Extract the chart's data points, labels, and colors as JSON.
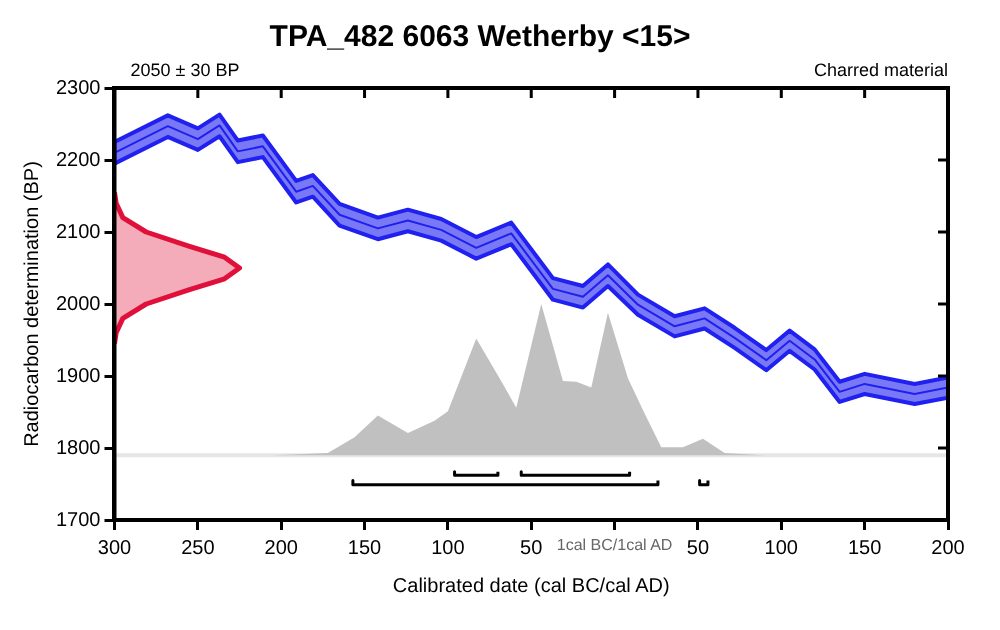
{
  "chart_data": {
    "type": "line",
    "title": "TPA_482 6063 Wetherby <15>",
    "xlabel": "Calibrated date (cal BC/cal AD)",
    "ylabel": "Radiocarbon determination (BP)",
    "annotations": [
      "2050 ± 30 BP",
      "Charred material"
    ],
    "xlim": [
      -300,
      200
    ],
    "xticks": [
      {
        "value": -300,
        "label": "300"
      },
      {
        "value": -250,
        "label": "250"
      },
      {
        "value": -200,
        "label": "200"
      },
      {
        "value": -150,
        "label": "150"
      },
      {
        "value": -100,
        "label": "100"
      },
      {
        "value": -50,
        "label": "50"
      },
      {
        "value": 0,
        "label": "1cal BC/1cal AD"
      },
      50,
      100,
      150,
      200
    ],
    "ylim": [
      1700,
      2300
    ],
    "yticks": [
      1700,
      1800,
      1900,
      2000,
      2100,
      2200,
      2300
    ],
    "grid": false,
    "legend": false,
    "marker": "none",
    "ref_lines": [
      {
        "axis": "y",
        "value": 1790,
        "color": "#e6e6e6"
      }
    ],
    "series": [
      {
        "type": "line",
        "color": "#2020f0",
        "x": [
          -300,
          -268,
          -250,
          -237,
          -226,
          -211,
          -191,
          -181,
          -165,
          -142,
          -124,
          -104,
          -83,
          -62,
          -37,
          -19,
          -4,
          14,
          36,
          54,
          72,
          91,
          105,
          120,
          135,
          150,
          180,
          200
        ],
        "values": [
          2210,
          2247,
          2229,
          2248,
          2212,
          2219,
          2156,
          2164,
          2124,
          2105,
          2116,
          2103,
          2078,
          2098,
          2021,
          2010,
          2040,
          1999,
          1969,
          1980,
          1953,
          1922,
          1949,
          1923,
          1878,
          1889,
          1875,
          1884
        ],
        "lower": [
          2195,
          2232,
          2214,
          2233,
          2197,
          2204,
          2141,
          2149,
          2109,
          2090,
          2101,
          2088,
          2063,
          2083,
          2006,
          1995,
          2025,
          1985,
          1955,
          1966,
          1939,
          1908,
          1935,
          1909,
          1864,
          1875,
          1861,
          1870
        ],
        "upper": [
          2225,
          2262,
          2244,
          2263,
          2227,
          2234,
          2171,
          2179,
          2139,
          2120,
          2131,
          2118,
          2093,
          2113,
          2036,
          2025,
          2055,
          2013,
          1983,
          1994,
          1967,
          1936,
          1963,
          1937,
          1892,
          1903,
          1889,
          1898
        ]
      },
      {
        "type": "area",
        "color": "#c0c0c0",
        "x": [
          -205,
          -172,
          -156,
          -142,
          -124,
          -108,
          -100,
          -83,
          -69,
          -59,
          -44,
          -31,
          -23,
          -14,
          -4,
          8,
          18,
          28,
          41,
          53,
          66,
          90
        ],
        "values": [
          1790,
          1793,
          1815,
          1845,
          1821,
          1838,
          1851,
          1952,
          1897,
          1856,
          2000,
          1893,
          1892,
          1884,
          1988,
          1897,
          1848,
          1801,
          1801,
          1813,
          1793,
          1790
        ]
      },
      {
        "type": "area",
        "color": "#e0103a",
        "x": [
          -300,
          -299,
          -295,
          -281,
          -255,
          -234,
          -225,
          -234,
          -255,
          -281,
          -295,
          -299,
          -300
        ],
        "values": [
          1945,
          1960,
          1980,
          2000,
          2020,
          2035,
          2050,
          2065,
          2080,
          2100,
          2120,
          2140,
          2155
        ]
      },
      {
        "color": "#000000",
        "x": [
          -96,
          -96,
          -70,
          -70,
          null,
          -56,
          -56,
          9,
          9
        ],
        "values": [
          1767,
          1762,
          1762,
          1767,
          null,
          1767,
          1762,
          1762,
          1767
        ]
      },
      {
        "type": "line",
        "color": "#000000",
        "x": [
          -157,
          -157,
          26,
          26,
          null,
          51,
          51,
          56,
          56
        ],
        "values": [
          1755,
          1749,
          1749,
          1755,
          null,
          1755,
          1749,
          1749,
          1755
        ]
      }
    ]
  }
}
